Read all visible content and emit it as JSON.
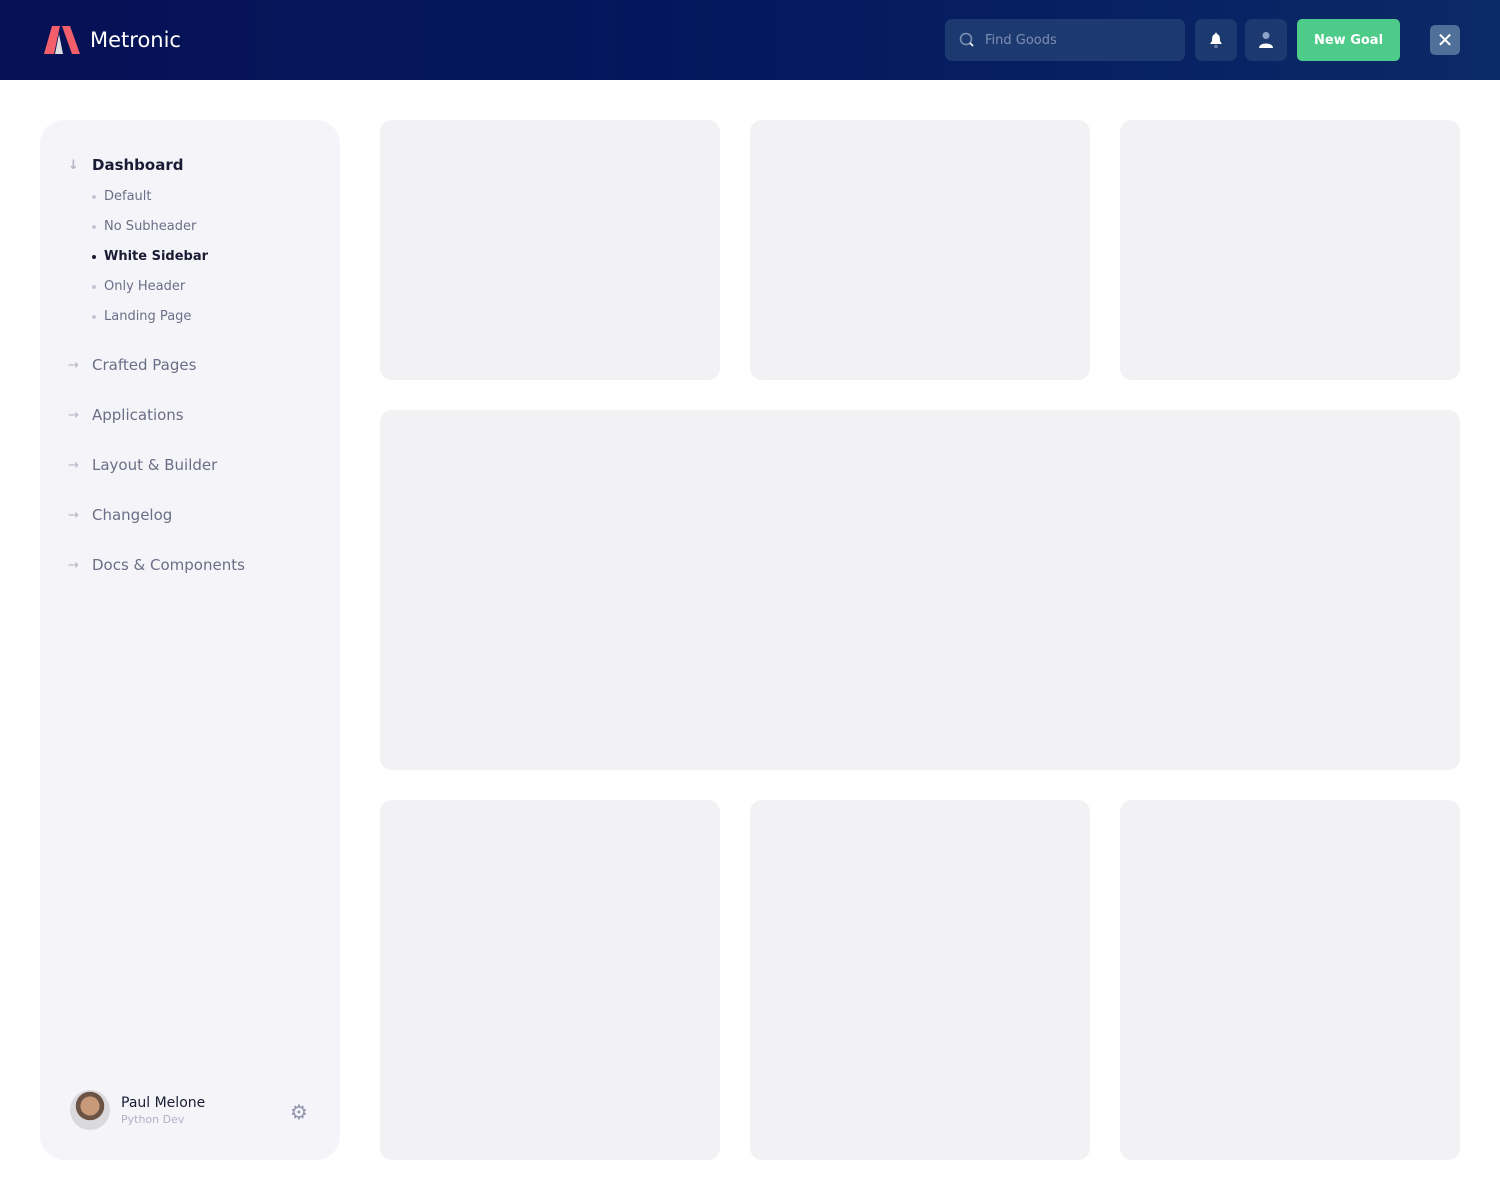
{
  "header": {
    "brand": "Metronic",
    "search_placeholder": "Find Goods",
    "new_goal_label": "New Goal",
    "icons": [
      "search-icon",
      "bell-icon",
      "user-icon",
      "close-icon"
    ],
    "accent": "#4fcb89"
  },
  "sidebar": {
    "dashboard": {
      "label": "Dashboard",
      "items": [
        {
          "label": "Default"
        },
        {
          "label": "No Subheader"
        },
        {
          "label": "White Sidebar",
          "active": true
        },
        {
          "label": "Only Header"
        },
        {
          "label": "Landing Page"
        }
      ]
    },
    "menu": [
      {
        "label": "Crafted Pages"
      },
      {
        "label": "Applications"
      },
      {
        "label": "Layout & Builder"
      },
      {
        "label": "Changelog"
      },
      {
        "label": "Docs & Components"
      }
    ],
    "user": {
      "name": "Paul Melone",
      "role": "Python Dev"
    }
  }
}
